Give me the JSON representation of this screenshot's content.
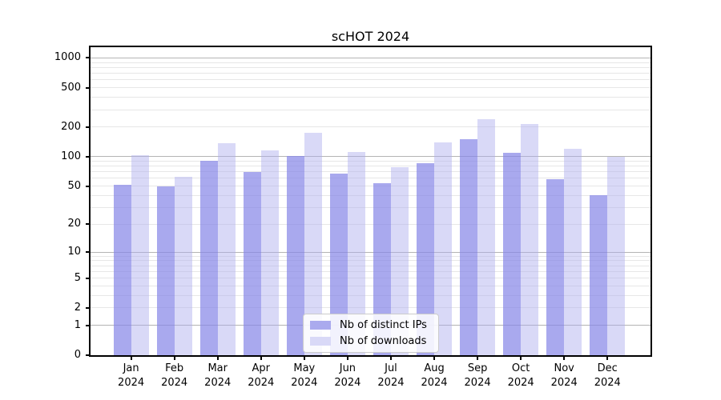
{
  "title": "scHOT 2024",
  "chart_data": {
    "type": "bar",
    "title": "scHOT 2024",
    "x_tick_labels": [
      [
        "Jan",
        "2024"
      ],
      [
        "Feb",
        "2024"
      ],
      [
        "Mar",
        "2024"
      ],
      [
        "Apr",
        "2024"
      ],
      [
        "May",
        "2024"
      ],
      [
        "Jun",
        "2024"
      ],
      [
        "Jul",
        "2024"
      ],
      [
        "Aug",
        "2024"
      ],
      [
        "Sep",
        "2024"
      ],
      [
        "Oct",
        "2024"
      ],
      [
        "Nov",
        "2024"
      ],
      [
        "Dec",
        "2024"
      ]
    ],
    "series": [
      {
        "name": "Nb of distinct IPs",
        "legend_color": "#aaaaee",
        "fill_color": "rgba(136,136,232,0.72)",
        "values": [
          51,
          50,
          90,
          69,
          101,
          67,
          53,
          86,
          150,
          110,
          59,
          40
        ]
      },
      {
        "name": "Nb of downloads",
        "legend_color": "#d9d9f7",
        "fill_color": "rgba(170,170,238,0.45)",
        "values": [
          103,
          62,
          136,
          116,
          175,
          111,
          78,
          140,
          241,
          215,
          121,
          99
        ]
      }
    ],
    "y_scale": "log1p",
    "y_ticks": [
      0,
      1,
      2,
      5,
      10,
      20,
      50,
      100,
      200,
      500,
      1000
    ],
    "ylim": [
      0,
      1283
    ],
    "grid": true,
    "grid_major_color": "#b4b4b4",
    "grid_minor_color": "#e7e7e7",
    "axis_color": "#000000",
    "background": "#ffffff",
    "legend_position": "inside-bottom-center"
  }
}
